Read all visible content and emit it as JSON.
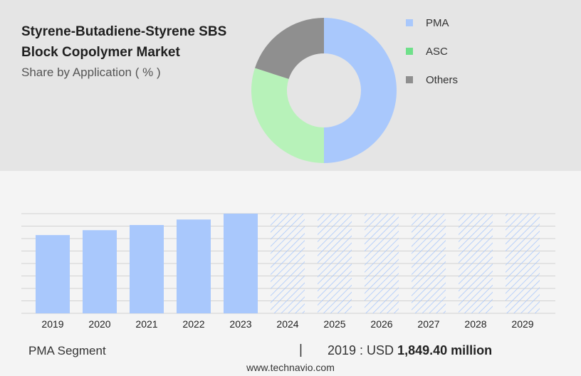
{
  "header": {
    "title": "Styrene-Butadiene-Styrene SBS Block Copolymer Market",
    "subtitle": "Share by Application ( % )"
  },
  "colors": {
    "PMA": "#a9c8fc",
    "ASC": "#b7f2b9",
    "Others": "#8f8f8f",
    "legend_ASC": "#6fe08a",
    "bar": "#a9c8fc",
    "forecast_hatch": "#a9c8fc"
  },
  "chart_data": [
    {
      "type": "pie",
      "variant": "donut",
      "title": "Share by Application ( % )",
      "categories": [
        "PMA",
        "ASC",
        "Others"
      ],
      "values": [
        50,
        30,
        20
      ],
      "legend": [
        "PMA",
        "ASC",
        "Others"
      ],
      "legend_position": "right"
    },
    {
      "type": "bar",
      "categories": [
        "2019",
        "2020",
        "2021",
        "2022",
        "2023",
        "2024",
        "2025",
        "2026",
        "2027",
        "2028",
        "2029"
      ],
      "values": [
        1849.4,
        1965,
        2087,
        2217,
        2356,
        null,
        null,
        null,
        null,
        null,
        null
      ],
      "forecast_categories": [
        "2024",
        "2025",
        "2026",
        "2027",
        "2028",
        "2029"
      ],
      "ylim": [
        0,
        2356
      ],
      "grid": true,
      "xlabel": "",
      "ylabel": ""
    }
  ],
  "footer": {
    "segment_label": "PMA Segment",
    "divider": "|",
    "year_label": "2019 : USD ",
    "value_label": "1,849.40 million"
  },
  "source": "www.technavio.com"
}
